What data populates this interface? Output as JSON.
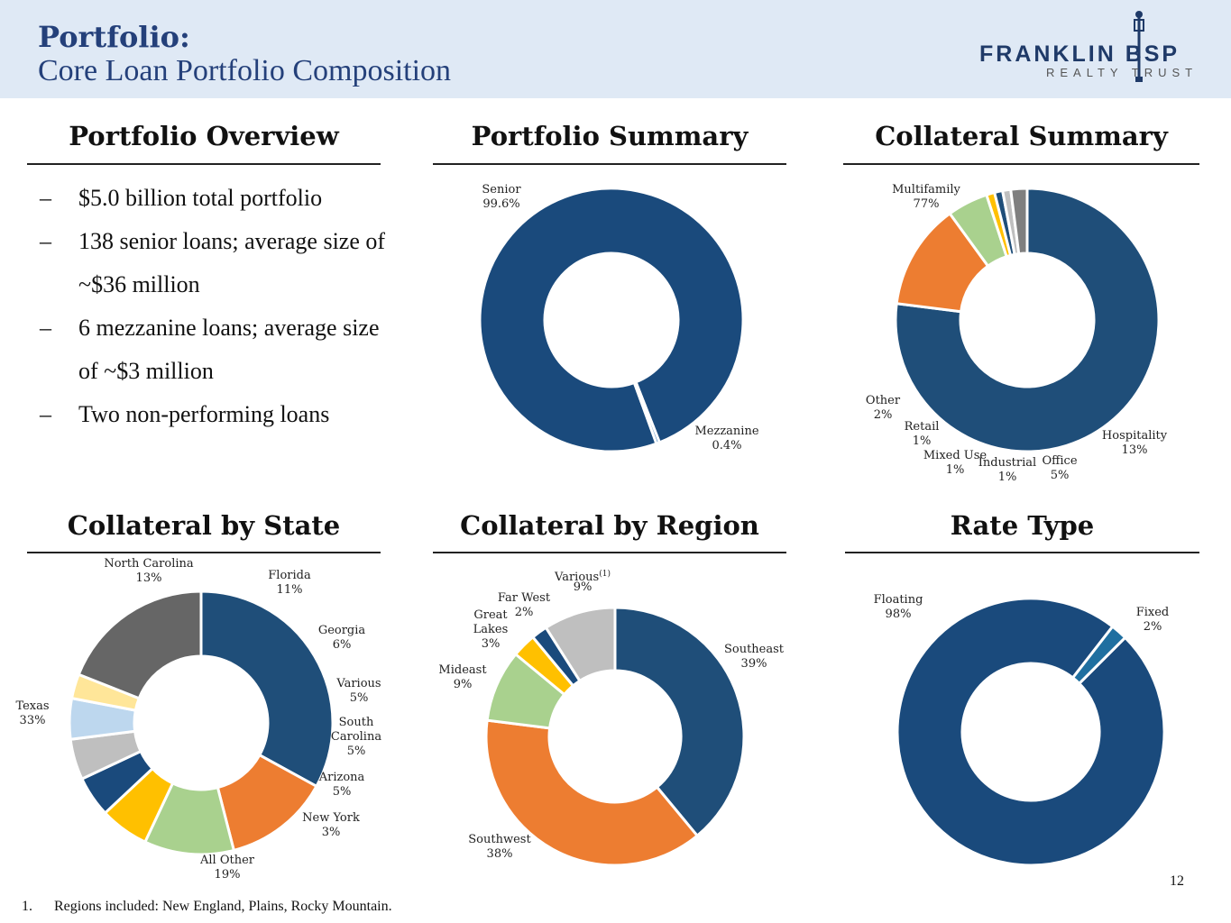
{
  "header": {
    "title": "Portfolio:",
    "subtitle": "Core Loan Portfolio Composition",
    "logo_main": "FRANKLIN BSP",
    "logo_sub": "REALTY TRUST",
    "logo_color": "#1f3a68"
  },
  "sections": {
    "overview": "Portfolio Overview",
    "summary": "Portfolio Summary",
    "collateral": "Collateral Summary",
    "state": "Collateral by State",
    "region": "Collateral by Region",
    "rate": "Rate Type"
  },
  "overview": {
    "dash": "–",
    "bullets": [
      "$5.0 billion total portfolio",
      "138 senior loans; average size of ~$36 million",
      "6 mezzanine loans; average size of ~$3 million",
      "Two non-performing loans"
    ]
  },
  "chart_data": [
    {
      "id": "portfolio-summary",
      "type": "pie",
      "start_angle": 160,
      "slices": [
        {
          "label": "Senior",
          "value": 99.6,
          "display": "99.6%",
          "color": "#1a4a7c"
        },
        {
          "label": "Mezzanine",
          "value": 0.4,
          "display": "0.4%",
          "color": "#2e75b6"
        }
      ]
    },
    {
      "id": "collateral-summary",
      "type": "pie",
      "start_angle": 0,
      "slices": [
        {
          "label": "Multifamily",
          "value": 77,
          "display": "77%",
          "color": "#1f4e79"
        },
        {
          "label": "Hospitality",
          "value": 13,
          "display": "13%",
          "color": "#ed7d31"
        },
        {
          "label": "Office",
          "value": 5,
          "display": "5%",
          "color": "#a9d18e"
        },
        {
          "label": "Industrial",
          "value": 1,
          "display": "1%",
          "color": "#ffc000"
        },
        {
          "label": "Mixed Use",
          "value": 1,
          "display": "1%",
          "color": "#1f4e79"
        },
        {
          "label": "Retail",
          "value": 1,
          "display": "1%",
          "color": "#bfbfbf"
        },
        {
          "label": "Other",
          "value": 2,
          "display": "2%",
          "color": "#7f7f7f"
        }
      ]
    },
    {
      "id": "collateral-by-state",
      "type": "pie",
      "start_angle": 0,
      "slices": [
        {
          "label": "Texas",
          "value": 33,
          "display": "33%",
          "color": "#1f4e79"
        },
        {
          "label": "North Carolina",
          "value": 13,
          "display": "13%",
          "color": "#ed7d31"
        },
        {
          "label": "Florida",
          "value": 11,
          "display": "11%",
          "color": "#a9d18e"
        },
        {
          "label": "Georgia",
          "value": 6,
          "display": "6%",
          "color": "#ffc000"
        },
        {
          "label": "Various",
          "value": 5,
          "display": "5%",
          "color": "#1a4a7c"
        },
        {
          "label": "South Carolina",
          "value": 5,
          "display": "5%",
          "color": "#bfbfbf"
        },
        {
          "label": "Arizona",
          "value": 5,
          "display": "5%",
          "color": "#bdd7ee"
        },
        {
          "label": "New York",
          "value": 3,
          "display": "3%",
          "color": "#ffe699"
        },
        {
          "label": "All Other",
          "value": 19,
          "display": "19%",
          "color": "#666666"
        }
      ]
    },
    {
      "id": "collateral-by-region",
      "type": "pie",
      "start_angle": 0,
      "slices": [
        {
          "label": "Southeast",
          "value": 39,
          "display": "39%",
          "color": "#1f4e79"
        },
        {
          "label": "Southwest",
          "value": 38,
          "display": "38%",
          "color": "#ed7d31"
        },
        {
          "label": "Mideast",
          "value": 9,
          "display": "9%",
          "color": "#a9d18e"
        },
        {
          "label": "Great Lakes",
          "value": 3,
          "display": "3%",
          "color": "#ffc000"
        },
        {
          "label": "Far West",
          "value": 2,
          "display": "2%",
          "color": "#1a4a7c"
        },
        {
          "label": "Various(1)",
          "value": 9,
          "display": "9%",
          "color": "#bfbfbf"
        }
      ]
    },
    {
      "id": "rate-type",
      "type": "pie",
      "start_angle": 45,
      "slices": [
        {
          "label": "Floating",
          "value": 98,
          "display": "98%",
          "color": "#1a4a7c"
        },
        {
          "label": "Fixed",
          "value": 2,
          "display": "2%",
          "color": "#1f6fa0"
        }
      ]
    }
  ],
  "footnote": {
    "number": "1.",
    "text": "Regions included: New England, Plains, Rocky Mountain."
  },
  "page_number": "12"
}
